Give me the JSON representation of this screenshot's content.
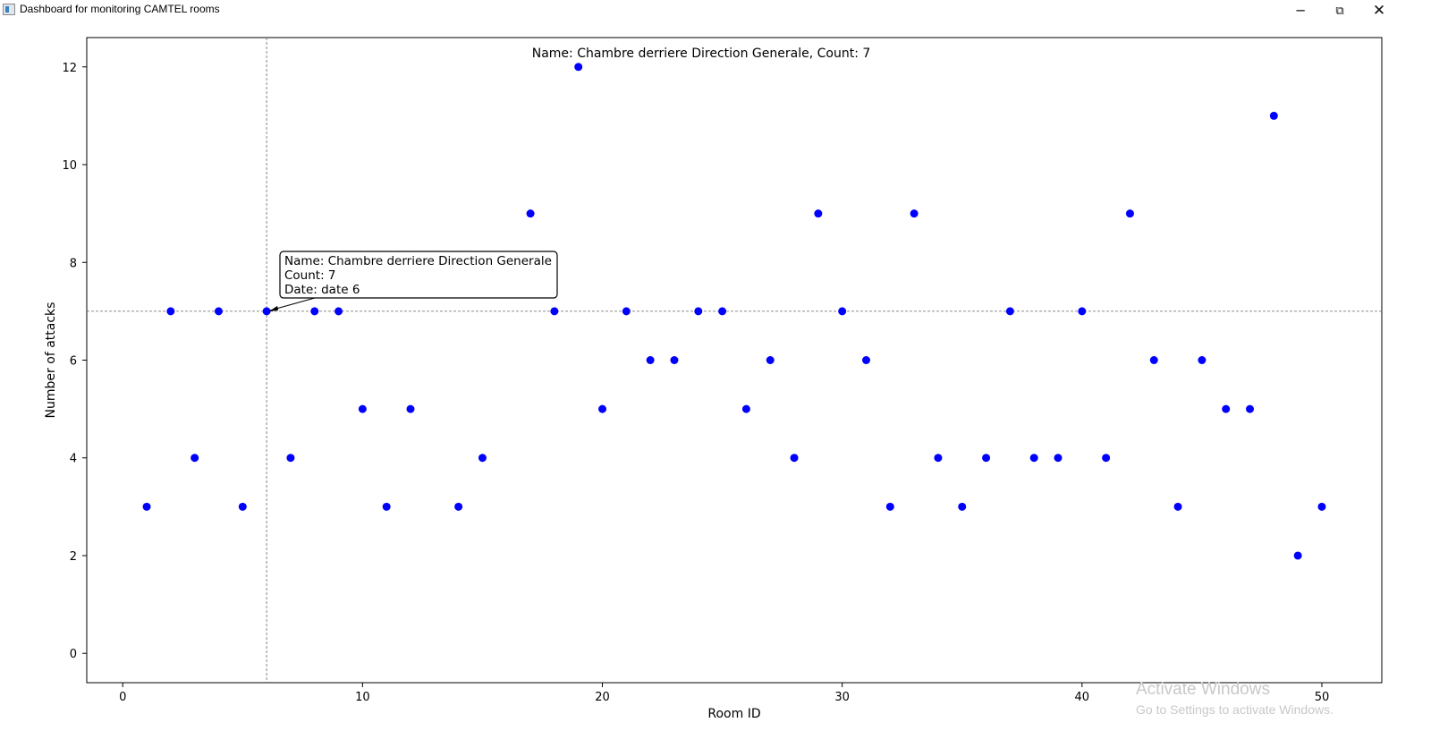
{
  "window": {
    "title": "Dashboard for monitoring CAMTEL rooms",
    "minimize_glyph": "─",
    "maximize_glyph": "⧉",
    "close_glyph": "✕",
    "icon": "app-window-icon"
  },
  "chart_data": {
    "type": "scatter",
    "title": "Name: Chambre derriere Direction Generale, Count: 7",
    "xlabel": "Room ID",
    "ylabel": "Number of attacks",
    "xlim": [
      -1.5,
      52.5
    ],
    "ylim": [
      -0.6,
      12.6
    ],
    "xticks": [
      0,
      10,
      20,
      30,
      40,
      50
    ],
    "yticks": [
      0,
      2,
      4,
      6,
      8,
      10,
      12
    ],
    "grid": false,
    "legend": "none",
    "marker_color": "#0000ff",
    "x": [
      1,
      2,
      3,
      4,
      5,
      6,
      7,
      8,
      9,
      10,
      11,
      12,
      14,
      15,
      17,
      18,
      19,
      20,
      21,
      22,
      23,
      24,
      25,
      26,
      27,
      28,
      29,
      30,
      31,
      32,
      33,
      34,
      35,
      36,
      37,
      38,
      39,
      40,
      41,
      42,
      43,
      44,
      45,
      46,
      47,
      48,
      49,
      50
    ],
    "y": [
      3,
      7,
      4,
      7,
      3,
      7,
      4,
      7,
      7,
      5,
      3,
      5,
      3,
      4,
      9,
      7,
      12,
      5,
      7,
      6,
      6,
      7,
      7,
      5,
      6,
      4,
      9,
      7,
      6,
      3,
      9,
      4,
      3,
      4,
      7,
      4,
      4,
      7,
      4,
      9,
      6,
      3,
      6,
      5,
      5,
      11,
      2,
      3
    ],
    "crosshair": {
      "x": 6,
      "y": 7
    },
    "annotation": {
      "x": 6,
      "y": 7,
      "lines": [
        "Name: Chambre derriere Direction Generale",
        "Count: 7",
        "Date: date 6"
      ]
    }
  },
  "watermark": {
    "title": "Activate Windows",
    "subtitle": "Go to Settings to activate Windows."
  }
}
